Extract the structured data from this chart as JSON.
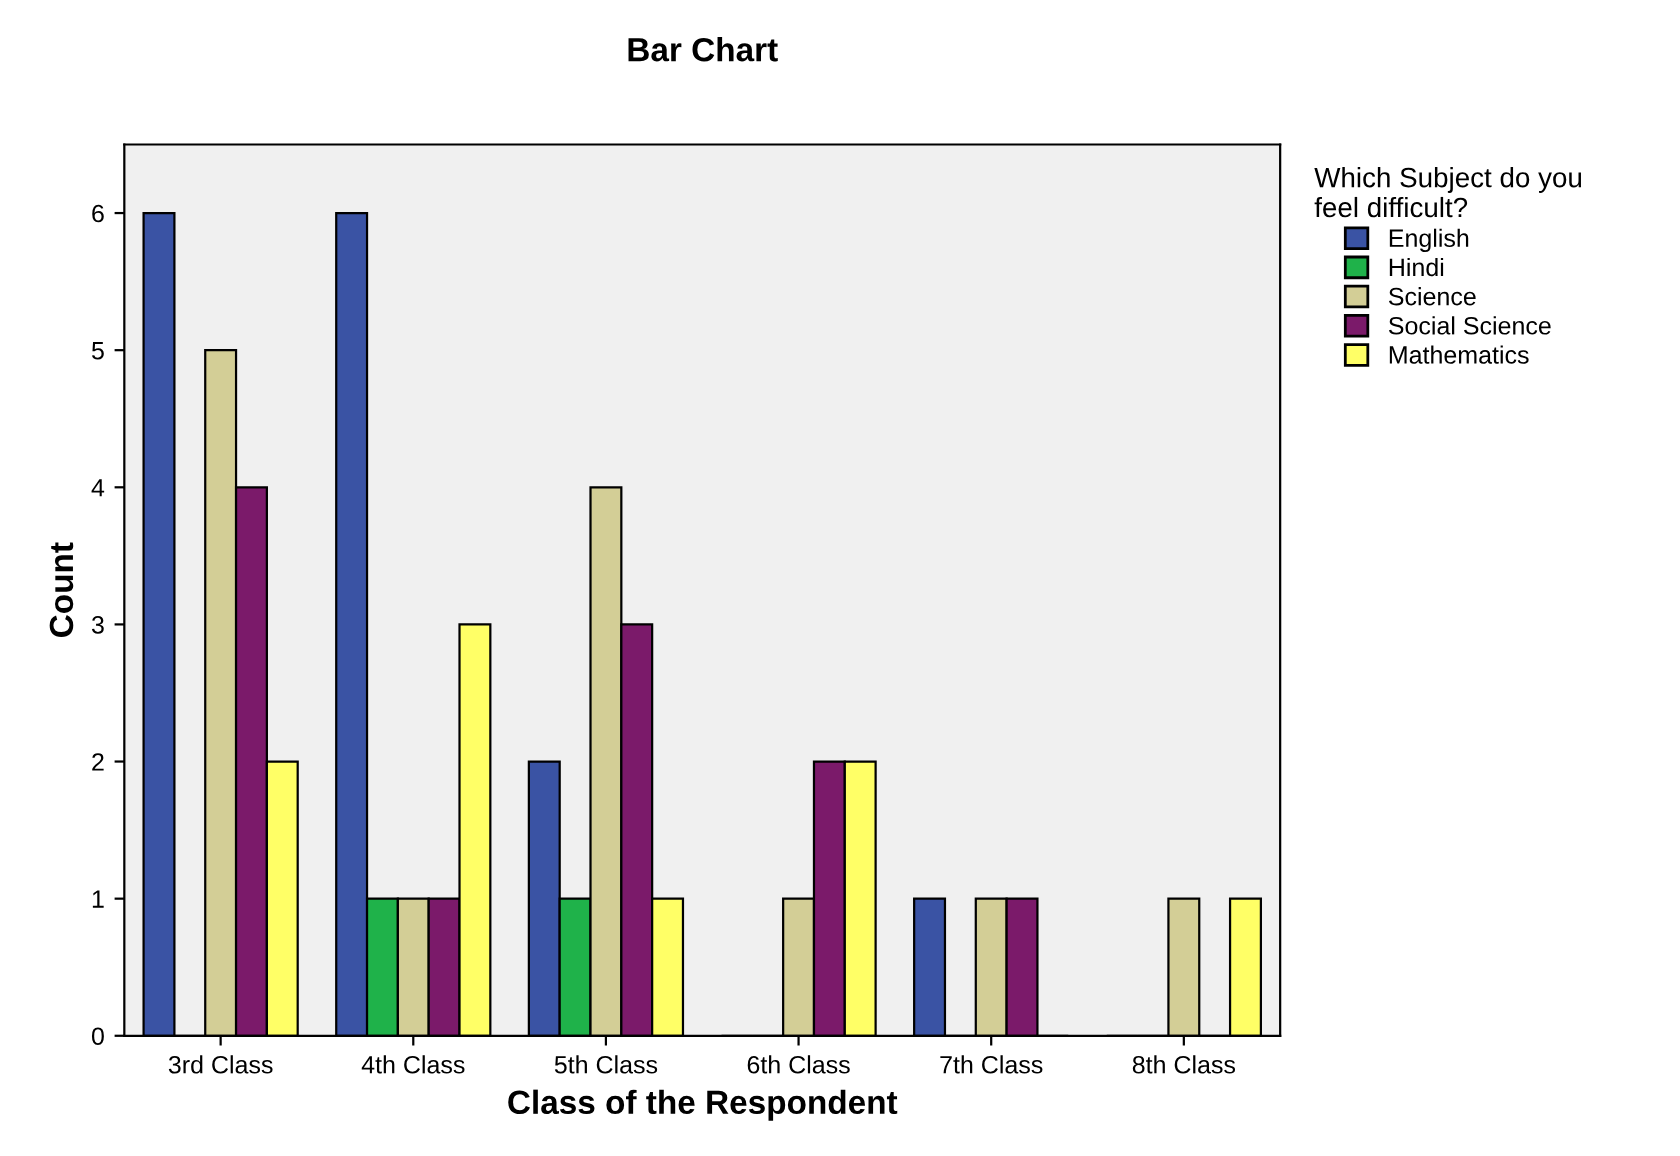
{
  "chart_data": {
    "type": "bar",
    "title": "Bar Chart",
    "xlabel": "Class of the Respondent",
    "ylabel": "Count",
    "legend_title": "Which Subject do you\nfeel difficult?",
    "categories": [
      "3rd Class",
      "4th Class",
      "5th Class",
      "6th Class",
      "7th Class",
      "8th Class"
    ],
    "series": [
      {
        "name": "English",
        "color": "#3a53a4",
        "values": [
          6,
          6,
          2,
          0,
          1,
          0
        ]
      },
      {
        "name": "Hindi",
        "color": "#1fb24a",
        "values": [
          0,
          1,
          1,
          0,
          0,
          0
        ]
      },
      {
        "name": "Science",
        "color": "#d3ce96",
        "values": [
          5,
          1,
          4,
          1,
          1,
          1
        ]
      },
      {
        "name": "Social Science",
        "color": "#7b1a6a",
        "values": [
          4,
          1,
          3,
          2,
          1,
          0
        ]
      },
      {
        "name": "Mathematics",
        "color": "#ffff66",
        "values": [
          2,
          3,
          1,
          2,
          0,
          1
        ]
      }
    ],
    "ylim": [
      0,
      6.5
    ],
    "yticks": [
      0,
      1,
      2,
      3,
      4,
      5,
      6
    ],
    "grid": false,
    "legend": "right"
  }
}
